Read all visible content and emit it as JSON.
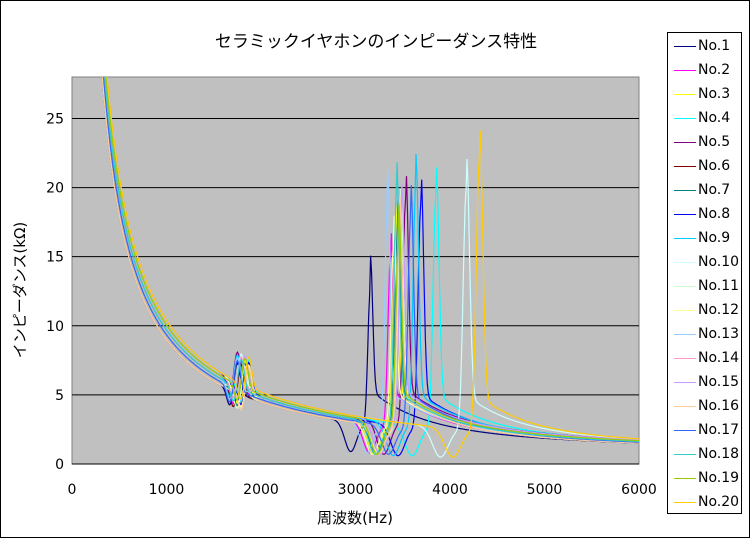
{
  "chart_data": {
    "type": "line",
    "title": "セラミックイヤホンのインピーダンス特性",
    "xlabel": "周波数(Hz)",
    "ylabel": "インピーダンス(kΩ)",
    "xlim": [
      0,
      6000
    ],
    "ylim": [
      0,
      28
    ],
    "xticks": [
      "0",
      "1000",
      "2000",
      "3000",
      "4000",
      "5000",
      "6000"
    ],
    "yticks": [
      "0",
      "5",
      "10",
      "15",
      "20",
      "25"
    ],
    "grid": true,
    "legend_position": "right",
    "plot_background": "#c0c0c0",
    "series": [
      {
        "name": "No.1",
        "color": "#000080",
        "resonance_hz": 2950,
        "peak_kohm": 12.7,
        "dip_kohm": 0.9
      },
      {
        "name": "No.2",
        "color": "#ff00ff",
        "resonance_hz": 3150,
        "peak_kohm": 15.0,
        "dip_kohm": 0.8
      },
      {
        "name": "No.3",
        "color": "#ffff00",
        "resonance_hz": 3200,
        "peak_kohm": 16.5,
        "dip_kohm": 0.7
      },
      {
        "name": "No.4",
        "color": "#00ffff",
        "resonance_hz": 3600,
        "peak_kohm": 19.6,
        "dip_kohm": 0.6
      },
      {
        "name": "No.5",
        "color": "#800080",
        "resonance_hz": 3300,
        "peak_kohm": 19.2,
        "dip_kohm": 0.7
      },
      {
        "name": "No.6",
        "color": "#800000",
        "resonance_hz": 3250,
        "peak_kohm": 17.0,
        "dip_kohm": 0.7
      },
      {
        "name": "No.7",
        "color": "#008080",
        "resonance_hz": 3220,
        "peak_kohm": 16.8,
        "dip_kohm": 0.8
      },
      {
        "name": "No.8",
        "color": "#0000ff",
        "resonance_hz": 3450,
        "peak_kohm": 18.8,
        "dip_kohm": 0.6
      },
      {
        "name": "No.9",
        "color": "#00ccff",
        "resonance_hz": 3400,
        "peak_kohm": 20.0,
        "dip_kohm": 0.6
      },
      {
        "name": "No.10",
        "color": "#ccffff",
        "resonance_hz": 3900,
        "peak_kohm": 20.0,
        "dip_kohm": 0.5
      },
      {
        "name": "No.11",
        "color": "#ccffcc",
        "resonance_hz": 3250,
        "peak_kohm": 17.5,
        "dip_kohm": 0.7
      },
      {
        "name": "No.12",
        "color": "#ffff99",
        "resonance_hz": 3180,
        "peak_kohm": 16.0,
        "dip_kohm": 0.7
      },
      {
        "name": "No.13",
        "color": "#99ccff",
        "resonance_hz": 3120,
        "peak_kohm": 18.9,
        "dip_kohm": 0.8
      },
      {
        "name": "No.14",
        "color": "#ff99cc",
        "resonance_hz": 3230,
        "peak_kohm": 17.2,
        "dip_kohm": 0.7
      },
      {
        "name": "No.15",
        "color": "#cc99ff",
        "resonance_hz": 3260,
        "peak_kohm": 17.8,
        "dip_kohm": 0.7
      },
      {
        "name": "No.16",
        "color": "#ffcc99",
        "resonance_hz": 3240,
        "peak_kohm": 17.0,
        "dip_kohm": 0.7
      },
      {
        "name": "No.17",
        "color": "#3366ff",
        "resonance_hz": 3350,
        "peak_kohm": 18.0,
        "dip_kohm": 0.7
      },
      {
        "name": "No.18",
        "color": "#33cccc",
        "resonance_hz": 3210,
        "peak_kohm": 19.7,
        "dip_kohm": 0.7
      },
      {
        "name": "No.19",
        "color": "#99cc00",
        "resonance_hz": 3230,
        "peak_kohm": 16.5,
        "dip_kohm": 0.7
      },
      {
        "name": "No.20",
        "color": "#ffcc00",
        "resonance_hz": 4030,
        "peak_kohm": 22.2,
        "dip_kohm": 0.5
      }
    ]
  }
}
